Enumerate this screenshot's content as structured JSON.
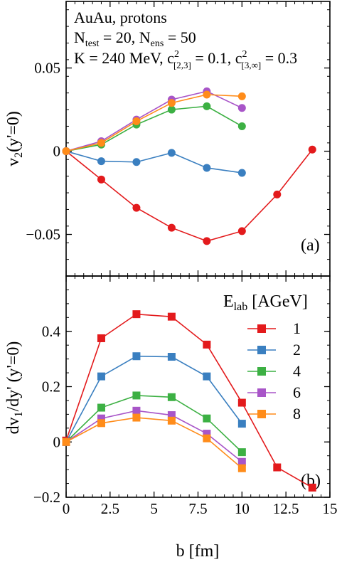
{
  "colors": {
    "1": "#e31a1c",
    "2": "#3a7fc0",
    "4": "#3cb043",
    "6": "#a855c8",
    "8": "#ff8c1a"
  },
  "chart_data": [
    {
      "type": "line",
      "panel_label": "(a)",
      "ylabel": "v2(y'=0)",
      "xlim": [
        0,
        15
      ],
      "ylim": [
        -0.075,
        0.09
      ],
      "yticks": [
        "0.05",
        "0",
        "−0.05"
      ],
      "annotation": {
        "line1": "AuAu,  protons",
        "line2": "N_test = 20, N_ens = 50",
        "line3": "K = 240 MeV, c²[2,3] = 0.1, c²[3,∞] = 0.3"
      },
      "series": [
        {
          "key": "1",
          "x": [
            0,
            2,
            4,
            6,
            8,
            10,
            12,
            14
          ],
          "y": [
            0,
            -0.017,
            -0.034,
            -0.046,
            -0.054,
            -0.048,
            -0.026,
            0.001
          ]
        },
        {
          "key": "2",
          "x": [
            0,
            2,
            4,
            6,
            8,
            10
          ],
          "y": [
            0,
            -0.006,
            -0.0065,
            -0.001,
            -0.01,
            -0.013
          ]
        },
        {
          "key": "4",
          "x": [
            0,
            2,
            4,
            6,
            8,
            10
          ],
          "y": [
            0,
            0.004,
            0.016,
            0.025,
            0.027,
            0.015
          ]
        },
        {
          "key": "6",
          "x": [
            0,
            2,
            4,
            6,
            8,
            10
          ],
          "y": [
            0,
            0.006,
            0.019,
            0.031,
            0.036,
            0.026
          ]
        },
        {
          "key": "8",
          "x": [
            0,
            2,
            4,
            6,
            8,
            10
          ],
          "y": [
            0,
            0.005,
            0.018,
            0.029,
            0.034,
            0.033
          ]
        }
      ]
    },
    {
      "type": "line",
      "panel_label": "(b)",
      "ylabel": "dv1/dy' (y'=0)",
      "xlabel": "b [fm]",
      "xlim": [
        0,
        15
      ],
      "ylim": [
        -0.2,
        0.6
      ],
      "xticks": [
        "0",
        "2.5",
        "5",
        "7.5",
        "10",
        "12.5",
        "15"
      ],
      "yticks": [
        "0.4",
        "0.2",
        "0",
        "−0.2"
      ],
      "legend_title": "E_lab [AGeV]",
      "legend_position": "right",
      "series": [
        {
          "key": "1",
          "name": "1",
          "x": [
            0,
            2,
            4,
            6,
            8,
            10,
            12,
            14
          ],
          "y": [
            0.005,
            0.375,
            0.462,
            0.453,
            0.352,
            0.142,
            -0.092,
            -0.165
          ]
        },
        {
          "key": "2",
          "name": "2",
          "x": [
            0,
            2,
            4,
            6,
            8,
            10
          ],
          "y": [
            0,
            0.237,
            0.31,
            0.308,
            0.237,
            0.066
          ]
        },
        {
          "key": "4",
          "name": "4",
          "x": [
            0,
            2,
            4,
            6,
            8,
            10
          ],
          "y": [
            0,
            0.124,
            0.168,
            0.162,
            0.085,
            -0.037
          ]
        },
        {
          "key": "6",
          "name": "6",
          "x": [
            0,
            2,
            4,
            6,
            8,
            10
          ],
          "y": [
            0,
            0.085,
            0.113,
            0.097,
            0.03,
            -0.072
          ]
        },
        {
          "key": "8",
          "name": "8",
          "x": [
            0,
            2,
            4,
            6,
            8,
            10
          ],
          "y": [
            0,
            0.068,
            0.088,
            0.077,
            0.013,
            -0.095
          ]
        }
      ]
    }
  ]
}
